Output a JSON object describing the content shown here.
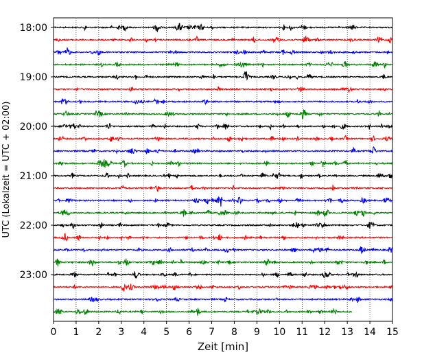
{
  "chart_data": {
    "type": "line",
    "title": "",
    "xlabel": "Zeit  [min]",
    "ylabel": "UTC (Lokalzeit = UTC + 02:00)",
    "xlim": [
      0,
      15
    ],
    "x_ticks": [
      0,
      1,
      2,
      3,
      4,
      5,
      6,
      7,
      8,
      9,
      10,
      11,
      12,
      13,
      14,
      15
    ],
    "y_ticks": [
      "18:00",
      "19:00",
      "20:00",
      "21:00",
      "22:00",
      "23:00"
    ],
    "grid": "vertical dotted at each minute",
    "legend": "none",
    "trace_colors": [
      "#000000",
      "#ff0000",
      "#0000ff",
      "#008000"
    ],
    "traces": [
      {
        "start": "18:00",
        "color": "#000000",
        "duration_min": 15
      },
      {
        "start": "18:15",
        "color": "#ff0000",
        "duration_min": 15
      },
      {
        "start": "18:30",
        "color": "#0000ff",
        "duration_min": 15
      },
      {
        "start": "18:45",
        "color": "#008000",
        "duration_min": 15
      },
      {
        "start": "19:00",
        "color": "#000000",
        "duration_min": 15
      },
      {
        "start": "19:15",
        "color": "#ff0000",
        "duration_min": 15
      },
      {
        "start": "19:30",
        "color": "#0000ff",
        "duration_min": 15
      },
      {
        "start": "19:45",
        "color": "#008000",
        "duration_min": 15
      },
      {
        "start": "20:00",
        "color": "#000000",
        "duration_min": 15
      },
      {
        "start": "20:15",
        "color": "#ff0000",
        "duration_min": 15
      },
      {
        "start": "20:30",
        "color": "#0000ff",
        "duration_min": 15
      },
      {
        "start": "20:45",
        "color": "#008000",
        "duration_min": 15
      },
      {
        "start": "21:00",
        "color": "#000000",
        "duration_min": 15
      },
      {
        "start": "21:15",
        "color": "#ff0000",
        "duration_min": 15
      },
      {
        "start": "21:30",
        "color": "#0000ff",
        "duration_min": 15
      },
      {
        "start": "21:45",
        "color": "#008000",
        "duration_min": 15
      },
      {
        "start": "22:00",
        "color": "#000000",
        "duration_min": 15
      },
      {
        "start": "22:15",
        "color": "#ff0000",
        "duration_min": 15
      },
      {
        "start": "22:30",
        "color": "#0000ff",
        "duration_min": 15
      },
      {
        "start": "22:45",
        "color": "#008000",
        "duration_min": 15
      },
      {
        "start": "23:00",
        "color": "#000000",
        "duration_min": 15
      },
      {
        "start": "23:15",
        "color": "#ff0000",
        "duration_min": 15
      },
      {
        "start": "23:30",
        "color": "#0000ff",
        "duration_min": 15
      },
      {
        "start": "23:45",
        "color": "#008000",
        "duration_min": 13.2
      }
    ]
  }
}
